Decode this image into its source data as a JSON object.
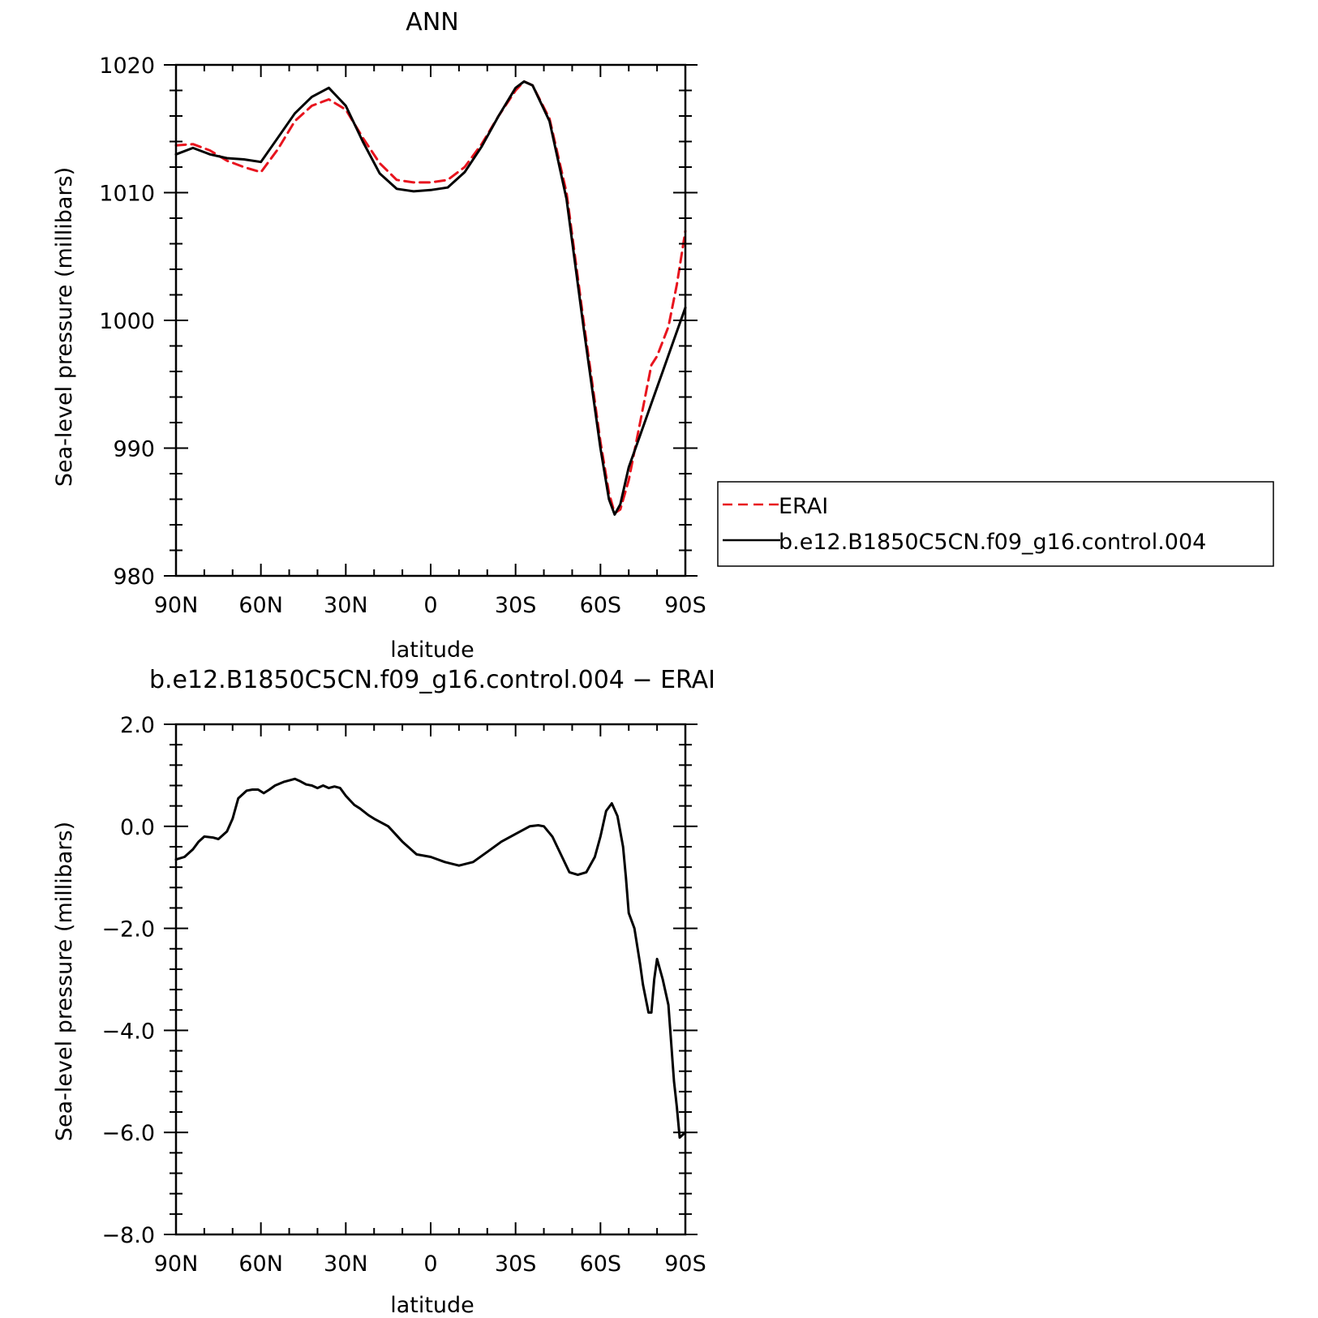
{
  "chart_data": [
    {
      "type": "line",
      "title": "ANN",
      "xlabel": "latitude",
      "ylabel": "Sea-level pressure (millibars)",
      "x_order": "north-to-south",
      "xlim": [
        90,
        -90
      ],
      "ylim": [
        980,
        1020
      ],
      "x_ticks": [
        90,
        60,
        30,
        0,
        -30,
        -60,
        -90
      ],
      "x_tick_labels": [
        "90N",
        "60N",
        "30N",
        "0",
        "30S",
        "60S",
        "90S"
      ],
      "y_ticks": [
        980,
        990,
        1000,
        1010,
        1020
      ],
      "y_tick_labels": [
        "980",
        "990",
        "1000",
        "1010",
        "1020"
      ],
      "grid": false,
      "legend_position": "outside-right",
      "series": [
        {
          "name": "ERAI",
          "color": "#e8141e",
          "dash": "dashed",
          "x": [
            90,
            84,
            78,
            72,
            66,
            60,
            54,
            48,
            42,
            36,
            30,
            24,
            18,
            12,
            6,
            0,
            -6,
            -12,
            -18,
            -24,
            -30,
            -33,
            -36,
            -42,
            -48,
            -54,
            -60,
            -63,
            -65,
            -67,
            -70,
            -74,
            -78,
            -80,
            -84,
            -87,
            -90
          ],
          "y": [
            1013.7,
            1013.8,
            1013.3,
            1012.5,
            1012.0,
            1011.6,
            1013.4,
            1015.6,
            1016.8,
            1017.3,
            1016.5,
            1014.3,
            1012.3,
            1011.0,
            1010.8,
            1010.8,
            1011.0,
            1012.0,
            1013.8,
            1016.0,
            1018.0,
            1018.7,
            1018.4,
            1015.8,
            1010.0,
            1000.0,
            990.5,
            986.5,
            984.9,
            985.2,
            987.5,
            992.0,
            996.5,
            997.2,
            999.5,
            1002.8,
            1007.0
          ]
        },
        {
          "name": "b.e12.B1850C5CN.f09_g16.control.004",
          "color": "#000000",
          "dash": "solid",
          "x": [
            90,
            84,
            78,
            72,
            66,
            60,
            54,
            48,
            42,
            36,
            33,
            30,
            24,
            18,
            12,
            6,
            0,
            -6,
            -12,
            -18,
            -24,
            -30,
            -33,
            -36,
            -42,
            -48,
            -54,
            -60,
            -63,
            -65,
            -67,
            -70,
            -74,
            -78,
            -82,
            -86,
            -90
          ],
          "y": [
            1013.0,
            1013.5,
            1013.0,
            1012.7,
            1012.6,
            1012.4,
            1014.3,
            1016.2,
            1017.5,
            1018.2,
            1017.5,
            1016.8,
            1014.0,
            1011.5,
            1010.3,
            1010.1,
            1010.2,
            1010.4,
            1011.6,
            1013.6,
            1016.0,
            1018.2,
            1018.7,
            1018.4,
            1015.6,
            1009.5,
            999.5,
            990.0,
            986.0,
            984.8,
            985.6,
            988.5,
            991.0,
            993.5,
            996.0,
            998.5,
            1001.0
          ]
        }
      ]
    },
    {
      "type": "line",
      "title": "b.e12.B1850C5CN.f09_g16.control.004  −  ERAI",
      "xlabel": "latitude",
      "ylabel": "Sea-level pressure (millibars)",
      "x_order": "north-to-south",
      "xlim": [
        90,
        -90
      ],
      "ylim": [
        -8,
        2
      ],
      "x_ticks": [
        90,
        60,
        30,
        0,
        -30,
        -60,
        -90
      ],
      "x_tick_labels": [
        "90N",
        "60N",
        "30N",
        "0",
        "30S",
        "60S",
        "90S"
      ],
      "y_ticks": [
        -8,
        -6,
        -4,
        -2,
        0,
        2
      ],
      "y_tick_labels": [
        "−8.0",
        "−6.0",
        "−4.0",
        "−2.0",
        "0.0",
        "2.0"
      ],
      "grid": false,
      "series": [
        {
          "color": "#000000",
          "dash": "solid",
          "x": [
            90,
            87,
            84,
            82,
            80,
            77,
            75,
            72,
            70,
            68,
            65,
            63,
            61,
            59,
            57,
            55,
            52,
            50,
            48,
            46,
            44,
            42,
            40,
            38,
            36,
            34,
            32,
            30,
            27,
            25,
            22,
            20,
            15,
            10,
            5,
            0,
            -5,
            -10,
            -15,
            -20,
            -25,
            -30,
            -35,
            -38,
            -40,
            -43,
            -46,
            -49,
            -52,
            -55,
            -58,
            -60,
            -62,
            -64,
            -66,
            -68,
            -69,
            -70,
            -72,
            -74,
            -75,
            -77,
            -78,
            -79,
            -80,
            -82,
            -84,
            -86,
            -87,
            -88,
            -89,
            -90
          ],
          "y": [
            -0.65,
            -0.6,
            -0.45,
            -0.3,
            -0.2,
            -0.22,
            -0.25,
            -0.1,
            0.15,
            0.55,
            0.7,
            0.72,
            0.72,
            0.65,
            0.72,
            0.8,
            0.87,
            0.9,
            0.93,
            0.88,
            0.82,
            0.8,
            0.75,
            0.8,
            0.75,
            0.78,
            0.75,
            0.6,
            0.42,
            0.35,
            0.22,
            0.15,
            0.0,
            -0.3,
            -0.55,
            -0.6,
            -0.7,
            -0.77,
            -0.7,
            -0.5,
            -0.3,
            -0.15,
            0.0,
            0.02,
            0.0,
            -0.2,
            -0.55,
            -0.9,
            -0.95,
            -0.9,
            -0.6,
            -0.2,
            0.3,
            0.45,
            0.2,
            -0.4,
            -1.0,
            -1.7,
            -2.0,
            -2.7,
            -3.1,
            -3.65,
            -3.65,
            -3.0,
            -2.6,
            -3.0,
            -3.5,
            -5.0,
            -5.5,
            -6.1,
            -6.05,
            -6.0
          ]
        }
      ]
    }
  ],
  "legend": {
    "items": [
      {
        "label": "ERAI",
        "color": "#e8141e",
        "dash": "dashed"
      },
      {
        "label": "b.e12.B1850C5CN.f09_g16.control.004",
        "color": "#000000",
        "dash": "solid"
      }
    ]
  }
}
